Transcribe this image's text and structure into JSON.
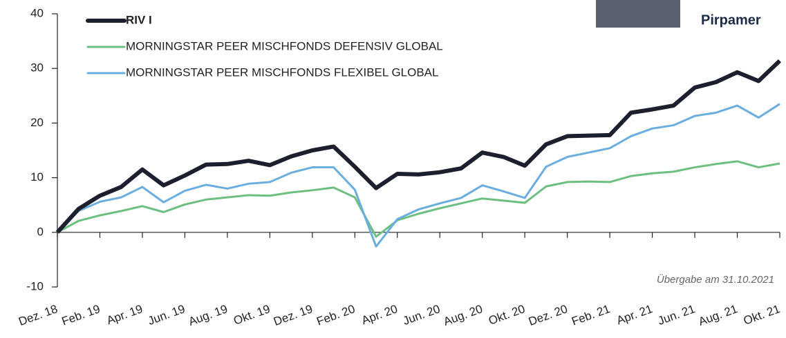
{
  "chart_data": {
    "type": "line",
    "categories": [
      "Dez. 18",
      null,
      "Feb. 19",
      null,
      "Apr. 19",
      null,
      "Jun. 19",
      null,
      "Aug. 19",
      null,
      "Okt. 19",
      null,
      "Dez. 19",
      null,
      "Feb. 20",
      null,
      "Apr. 20",
      null,
      "Jun. 20",
      null,
      "Aug. 20",
      null,
      "Okt. 20",
      null,
      "Dez. 20",
      null,
      "Feb. 21",
      null,
      "Apr. 21",
      null,
      "Jun. 21",
      null,
      "Aug. 21",
      null,
      "Okt. 21"
    ],
    "series": [
      {
        "name": "RIV I",
        "color": "#1c1f2e",
        "values": [
          0,
          4.3,
          6.7,
          8.3,
          11.5,
          8.6,
          10.4,
          12.4,
          12.5,
          13.1,
          12.3,
          13.9,
          15.0,
          15.7,
          12.0,
          8.1,
          10.7,
          10.6,
          11.0,
          11.7,
          14.6,
          13.8,
          12.2,
          16.1,
          17.6,
          17.7,
          17.8,
          21.9,
          22.5,
          23.2,
          26.5,
          27.5,
          29.3,
          27.7,
          31.4
        ]
      },
      {
        "name": "MORNINGSTAR PEER MISCHFONDS DEFENSIV GLOBAL",
        "color": "#6cbf7f",
        "values": [
          0,
          2.1,
          3.1,
          3.9,
          4.8,
          3.7,
          5.1,
          6.0,
          6.4,
          6.8,
          6.7,
          7.3,
          7.7,
          8.2,
          6.4,
          -0.8,
          2.2,
          3.4,
          4.4,
          5.3,
          6.2,
          5.8,
          5.4,
          8.4,
          9.2,
          9.3,
          9.2,
          10.3,
          10.8,
          11.1,
          11.9,
          12.5,
          13.0,
          11.9,
          12.6
        ]
      },
      {
        "name": "MORNINGSTAR PEER MISCHFONDS FLEXIBEL GLOBAL",
        "color": "#6aaee0",
        "values": [
          0,
          3.9,
          5.6,
          6.4,
          8.3,
          5.5,
          7.6,
          8.7,
          8.0,
          8.9,
          9.2,
          10.9,
          11.9,
          11.9,
          7.8,
          -2.6,
          2.4,
          4.2,
          5.3,
          6.3,
          8.6,
          7.5,
          6.3,
          12.0,
          13.8,
          14.6,
          15.4,
          17.6,
          19.0,
          19.6,
          21.3,
          21.9,
          23.2,
          21.0,
          23.5
        ]
      }
    ],
    "ylim": [
      -10,
      40
    ],
    "yticks": [
      -10,
      0,
      10,
      20,
      30,
      40
    ],
    "annotation": "Übergabe am 31.10.2021",
    "person": "Pirpamer"
  }
}
